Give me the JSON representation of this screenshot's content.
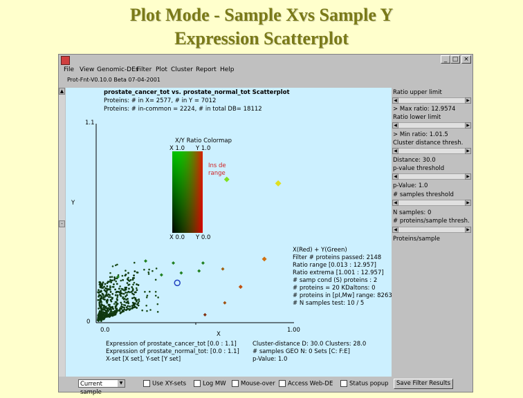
{
  "slide": {
    "title_line1": "Plot Mode -  Sample Xvs Sample Y",
    "title_line2": "Expression Scatterplot"
  },
  "window": {
    "controls": {
      "minimize": "_",
      "maximize": "□",
      "close": "×"
    },
    "menu": [
      "File",
      "View",
      "Genomic-DEs",
      "Filter",
      "Plot",
      "Cluster",
      "Report",
      "Help"
    ],
    "version_line": "Prot-Fnt-V0.10.0 Beta 07-04-2001"
  },
  "plot": {
    "title": "prostate_cancer_tot vs. prostate_normal_tot Scatterplot",
    "line2": "Proteins: # in X= 2577, # in Y = 7012",
    "line3": "Proteins: # in-common = 2224, # in total DB= 18112",
    "y_axis_max": "1.1",
    "y_axis_label": "Y",
    "y_axis_zero": "0",
    "x_axis_min": "0.0",
    "x_axis_max": "1.00",
    "x_axis_label": "X",
    "colormap": {
      "title": "X/Y Ratio Colormap",
      "x_top": "X 1.0",
      "y_top": "Y 1.0",
      "x_bottom": "X 0.0",
      "y_bottom": "Y 0.0",
      "range_note": [
        "Ins de",
        "range"
      ]
    },
    "stats": [
      "X(Red) + Y(Green)",
      "Filter # proteins passed: 2148",
      "Ratio range [0.013 : 12.957]",
      "Ratio extrema [1.001 : 12.957]",
      "# samp cond (S) proteins : 2",
      "# proteins = 20 KDaltons: 0",
      "# proteins in [pI,Mw] range: 8263",
      "# N samples test: 10 / 5"
    ],
    "footer_left": [
      "Expression of prostate_cancer_tot [0.0 : 1.1]",
      "Expression of prostate_normal_tot: [0.0 : 1.1]",
      "X-set [X set], Y-set [Y set]"
    ],
    "footer_right": [
      "Cluster-distance D: 30.0  Clusters: 28.0",
      "# samples GEO N: 0  Sets [C: F:E]",
      "p-Value: 1.0"
    ],
    "points": {
      "outliers": [
        {
          "x": 0.66,
          "y": 0.72,
          "c": "#80e020",
          "r": 4
        },
        {
          "x": 0.92,
          "y": 0.7,
          "c": "#e0e020",
          "r": 4.5
        },
        {
          "x": 0.85,
          "y": 0.32,
          "c": "#d07010",
          "r": 3.5
        },
        {
          "x": 0.64,
          "y": 0.27,
          "c": "#a06010",
          "r": 2.5
        },
        {
          "x": 0.39,
          "y": 0.3,
          "c": "#208020",
          "r": 2.5
        },
        {
          "x": 0.54,
          "y": 0.3,
          "c": "#208020",
          "r": 2.5
        },
        {
          "x": 0.73,
          "y": 0.18,
          "c": "#c05010",
          "r": 3
        },
        {
          "x": 0.65,
          "y": 0.1,
          "c": "#a05010",
          "r": 2.5
        },
        {
          "x": 0.25,
          "y": 0.31,
          "c": "#208020",
          "r": 2.5
        },
        {
          "x": 0.43,
          "y": 0.25,
          "c": "#208020",
          "r": 2.5
        },
        {
          "x": 0.52,
          "y": 0.26,
          "c": "#208020",
          "r": 2.5
        },
        {
          "x": 0.33,
          "y": 0.24,
          "c": "#208020",
          "r": 2.5
        },
        {
          "x": 0.11,
          "y": 0.23,
          "c": "#208020",
          "r": 2.5
        },
        {
          "x": 0.55,
          "y": 0.04,
          "c": "#803010",
          "r": 2.5
        }
      ],
      "selected": {
        "x": 0.41,
        "y": 0.2,
        "c": "#2040c0",
        "r": 4
      }
    }
  },
  "right_panel": [
    {
      "label": "Ratio upper limit",
      "value": ""
    },
    {
      "label": "> Max ratio: 12.9574",
      "value": ""
    },
    {
      "label": "Ratio lower limit",
      "value": ""
    },
    {
      "label": "> Min ratio: 1.01.5",
      "value": ""
    },
    {
      "label": "Cluster distance thresh.",
      "value": ""
    },
    {
      "label": "   Distance: 30.0",
      "value": ""
    },
    {
      "label": "p-value threshold",
      "value": ""
    },
    {
      "label": "p-Value: 1.0",
      "value": ""
    },
    {
      "label": "# samples threshold",
      "value": ""
    },
    {
      "label": "   N samples: 0",
      "value": ""
    },
    {
      "label": "# proteins/sample thresh.",
      "value": ""
    },
    {
      "label": "  Proteins/sample",
      "value": ""
    }
  ],
  "bottom_bar": {
    "select_value": "Current sample",
    "checkboxes": [
      "Use XY-sets",
      "Log MW",
      "Mouse-over",
      "Access Web-DE",
      "Status popup"
    ],
    "save_button": "Save Filter Results"
  }
}
